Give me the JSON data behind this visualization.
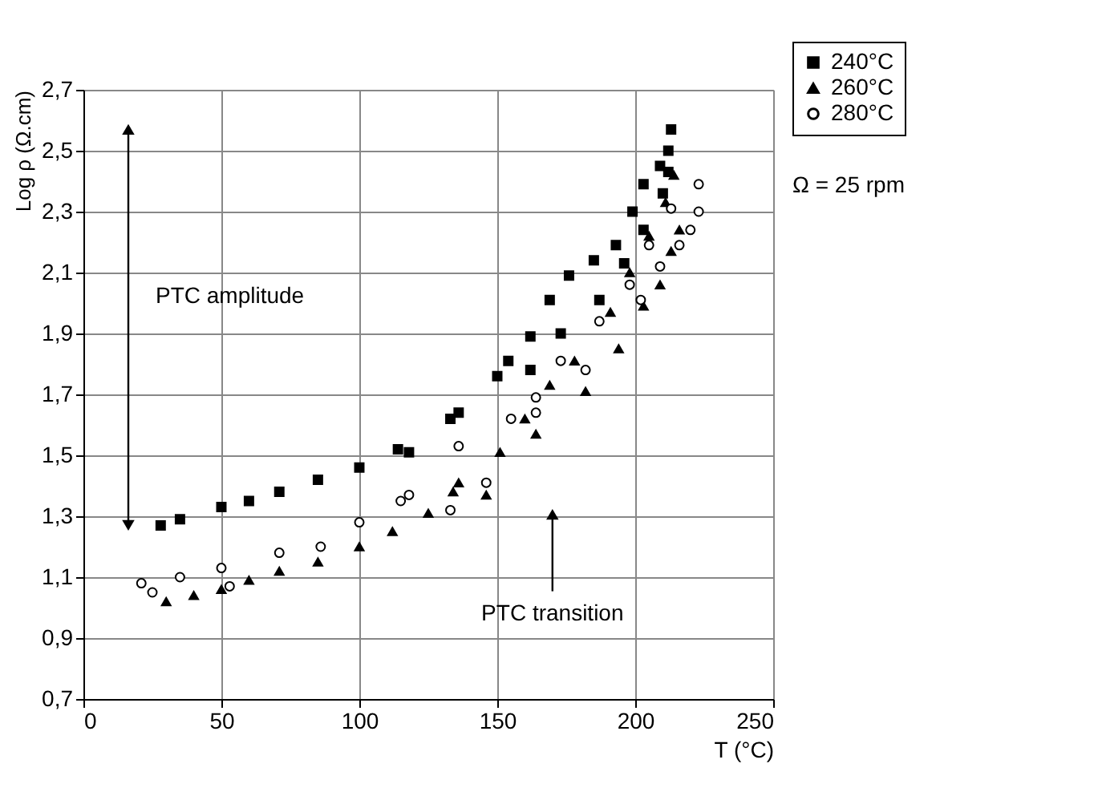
{
  "chart_data": {
    "type": "scatter",
    "xlabel": "T (°C)",
    "ylabel": "Log ρ  (Ω.cm)",
    "xlim": [
      0,
      250
    ],
    "xticks": [
      0,
      50,
      100,
      150,
      200,
      250
    ],
    "ylim": [
      0.7,
      2.7
    ],
    "yticks": [
      {
        "value": 0.7,
        "label": "0,7"
      },
      {
        "value": 0.9,
        "label": "0,9"
      },
      {
        "value": 1.1,
        "label": "1,1"
      },
      {
        "value": 1.3,
        "label": "1,3"
      },
      {
        "value": 1.5,
        "label": "1,5"
      },
      {
        "value": 1.7,
        "label": "1,7"
      },
      {
        "value": 1.9,
        "label": "1,9"
      },
      {
        "value": 2.1,
        "label": "2,1"
      },
      {
        "value": 2.3,
        "label": "2,3"
      },
      {
        "value": 2.5,
        "label": "2,5"
      },
      {
        "value": 2.7,
        "label": "2,7"
      }
    ],
    "grid": true,
    "legend": "top right",
    "series": [
      {
        "name": "240°C",
        "color": "#000000",
        "marker": "square",
        "x": [
          28,
          35,
          50,
          60,
          71,
          85,
          100,
          114,
          118,
          133,
          136,
          150,
          154,
          162,
          169,
          176,
          185,
          193,
          199,
          203,
          209,
          212,
          213,
          162,
          173,
          187,
          196,
          203,
          210,
          212
        ],
        "values": [
          1.27,
          1.29,
          1.33,
          1.35,
          1.38,
          1.42,
          1.46,
          1.52,
          1.51,
          1.62,
          1.64,
          1.76,
          1.81,
          1.89,
          2.01,
          2.09,
          2.14,
          2.19,
          2.3,
          2.39,
          2.45,
          2.5,
          2.57,
          1.78,
          1.9,
          2.01,
          2.13,
          2.24,
          2.36,
          2.43
        ]
      },
      {
        "name": "260°C",
        "color": "#000000",
        "marker": "triangle",
        "x": [
          30,
          40,
          50,
          60,
          71,
          85,
          100,
          112,
          125,
          134,
          136,
          146,
          151,
          160,
          164,
          169,
          178,
          182,
          191,
          194,
          198,
          203,
          205,
          209,
          211,
          213,
          214,
          216
        ],
        "values": [
          1.02,
          1.04,
          1.06,
          1.09,
          1.12,
          1.15,
          1.2,
          1.25,
          1.31,
          1.38,
          1.41,
          1.37,
          1.51,
          1.62,
          1.57,
          1.73,
          1.81,
          1.71,
          1.97,
          1.85,
          2.1,
          1.99,
          2.22,
          2.06,
          2.33,
          2.17,
          2.42,
          2.24
        ]
      },
      {
        "name": "280°C",
        "color": "#000000",
        "marker": "circle",
        "x": [
          21,
          25,
          35,
          50,
          53,
          71,
          86,
          100,
          115,
          118,
          133,
          136,
          146,
          155,
          164,
          164,
          173,
          182,
          187,
          198,
          202,
          205,
          209,
          213,
          216,
          220,
          223,
          223
        ],
        "values": [
          1.08,
          1.05,
          1.1,
          1.13,
          1.07,
          1.18,
          1.2,
          1.28,
          1.35,
          1.37,
          1.32,
          1.53,
          1.41,
          1.62,
          1.69,
          1.64,
          1.81,
          1.78,
          1.94,
          2.06,
          2.01,
          2.19,
          2.12,
          2.31,
          2.19,
          2.24,
          2.3,
          2.39
        ]
      }
    ],
    "annotations": [
      "PTC amplitude",
      "PTC transition",
      "Ω = 25 rpm"
    ]
  }
}
